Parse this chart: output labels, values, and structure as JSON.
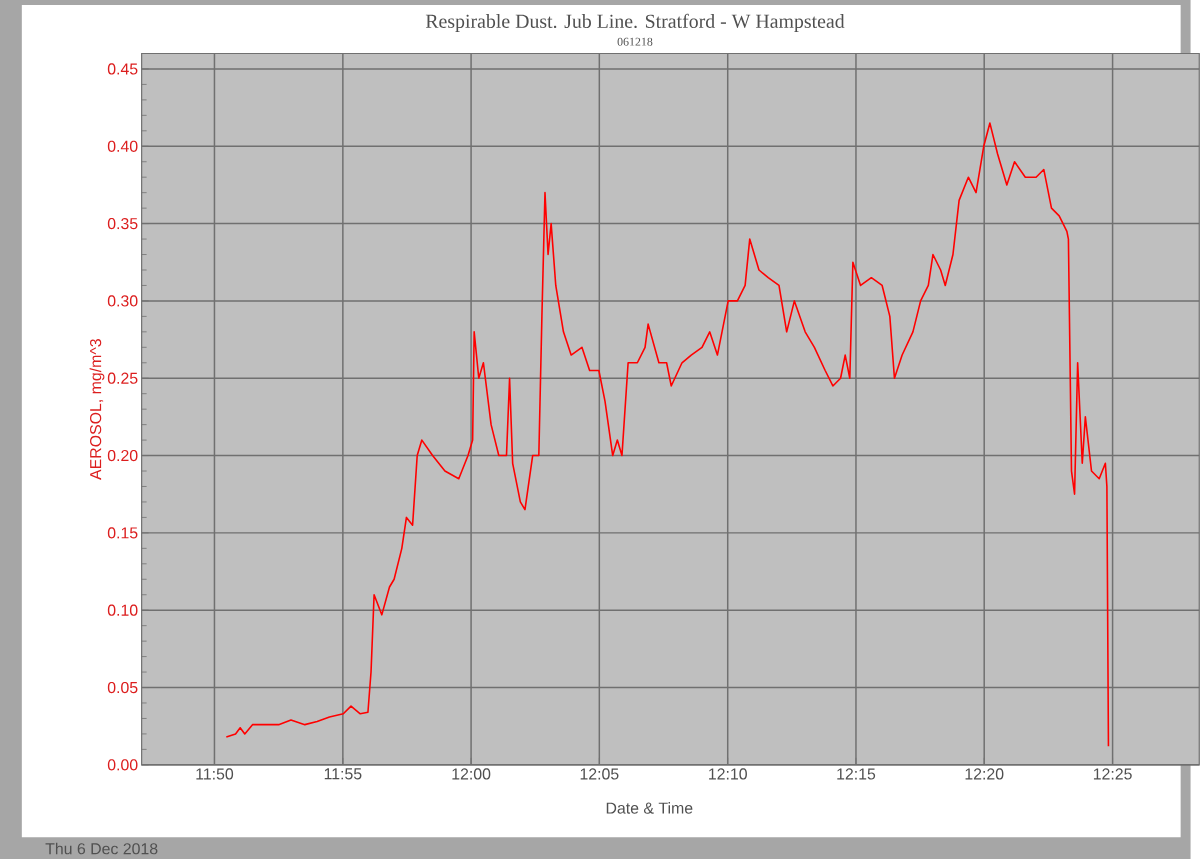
{
  "chart_data": {
    "type": "line",
    "title": "Respirable Dust. Jub Line. Stratford - W Hampstead",
    "subtitle": "061218",
    "xlabel": "Date & Time",
    "ylabel": "AEROSOL, mg/m^3",
    "annotations": [
      "Thu 6 Dec 2018"
    ],
    "grid": true,
    "marker": "none",
    "line_style": "solid",
    "xlim": [
      11.786,
      12.473
    ],
    "ylim": [
      0,
      0.46
    ],
    "xticks": [
      {
        "value": 11.8333,
        "label": "11:50"
      },
      {
        "value": 11.9167,
        "label": "11:55"
      },
      {
        "value": 12.0,
        "label": "12:00"
      },
      {
        "value": 12.0833,
        "label": "12:05"
      },
      {
        "value": 12.1667,
        "label": "12:10"
      },
      {
        "value": 12.25,
        "label": "12:15"
      },
      {
        "value": 12.3333,
        "label": "12:20"
      },
      {
        "value": 12.4167,
        "label": "12:25"
      }
    ],
    "yticks": [
      {
        "value": 0,
        "label": "0.00"
      },
      {
        "value": 0.05,
        "label": "0.05"
      },
      {
        "value": 0.1,
        "label": "0.10"
      },
      {
        "value": 0.15,
        "label": "0.15"
      },
      {
        "value": 0.2,
        "label": "0.20"
      },
      {
        "value": 0.25,
        "label": "0.25"
      },
      {
        "value": 0.3,
        "label": "0.30"
      },
      {
        "value": 0.35,
        "label": "0.35"
      },
      {
        "value": 0.4,
        "label": "0.40"
      },
      {
        "value": 0.45,
        "label": "0.45"
      }
    ],
    "series": [
      {
        "color": "#ff0000",
        "x": [
          11.841,
          11.847,
          11.85,
          11.853,
          11.858,
          11.875,
          11.883,
          11.892,
          11.9,
          11.908,
          11.917,
          11.922,
          11.928,
          11.933,
          11.935,
          11.937,
          11.942,
          11.947,
          11.95,
          11.955,
          11.958,
          11.962,
          11.965,
          11.968,
          11.975,
          11.983,
          11.992,
          11.998,
          12.001,
          12.002,
          12.005,
          12.008,
          12.013,
          12.018,
          12.023,
          12.025,
          12.027,
          12.032,
          12.035,
          12.04,
          12.044,
          12.046,
          12.048,
          12.05,
          12.052,
          12.055,
          12.06,
          12.065,
          12.072,
          12.077,
          12.083,
          12.087,
          12.092,
          12.095,
          12.098,
          12.102,
          12.108,
          12.113,
          12.115,
          12.122,
          12.127,
          12.13,
          12.137,
          12.143,
          12.15,
          12.155,
          12.16,
          12.163,
          12.167,
          12.173,
          12.178,
          12.181,
          12.187,
          12.193,
          12.2,
          12.205,
          12.21,
          12.217,
          12.223,
          12.23,
          12.235,
          12.24,
          12.243,
          12.246,
          12.248,
          12.253,
          12.26,
          12.267,
          12.272,
          12.275,
          12.28,
          12.287,
          12.292,
          12.297,
          12.3,
          12.305,
          12.308,
          12.313,
          12.317,
          12.323,
          12.328,
          12.333,
          12.337,
          12.342,
          12.348,
          12.353,
          12.36,
          12.367,
          12.372,
          12.377,
          12.382,
          12.387,
          12.388,
          12.39,
          12.392,
          12.394,
          12.397,
          12.399,
          12.403,
          12.408,
          12.412,
          12.413,
          12.414
        ],
        "values": [
          0.018,
          0.02,
          0.024,
          0.02,
          0.026,
          0.026,
          0.029,
          0.026,
          0.028,
          0.031,
          0.033,
          0.038,
          0.033,
          0.034,
          0.06,
          0.11,
          0.097,
          0.115,
          0.12,
          0.14,
          0.16,
          0.155,
          0.2,
          0.21,
          0.2,
          0.19,
          0.185,
          0.2,
          0.21,
          0.28,
          0.25,
          0.26,
          0.22,
          0.2,
          0.2,
          0.25,
          0.195,
          0.17,
          0.165,
          0.2,
          0.2,
          0.29,
          0.37,
          0.33,
          0.35,
          0.31,
          0.28,
          0.265,
          0.27,
          0.255,
          0.255,
          0.235,
          0.2,
          0.21,
          0.2,
          0.26,
          0.26,
          0.27,
          0.285,
          0.26,
          0.26,
          0.245,
          0.26,
          0.265,
          0.27,
          0.28,
          0.265,
          0.28,
          0.3,
          0.3,
          0.31,
          0.34,
          0.32,
          0.315,
          0.31,
          0.28,
          0.3,
          0.28,
          0.27,
          0.255,
          0.245,
          0.25,
          0.265,
          0.25,
          0.325,
          0.31,
          0.315,
          0.31,
          0.29,
          0.25,
          0.265,
          0.28,
          0.3,
          0.31,
          0.33,
          0.32,
          0.31,
          0.33,
          0.365,
          0.38,
          0.37,
          0.4,
          0.415,
          0.395,
          0.375,
          0.39,
          0.38,
          0.38,
          0.385,
          0.36,
          0.355,
          0.345,
          0.34,
          0.19,
          0.175,
          0.26,
          0.195,
          0.225,
          0.19,
          0.185,
          0.195,
          0.18,
          0.012
        ]
      }
    ]
  }
}
